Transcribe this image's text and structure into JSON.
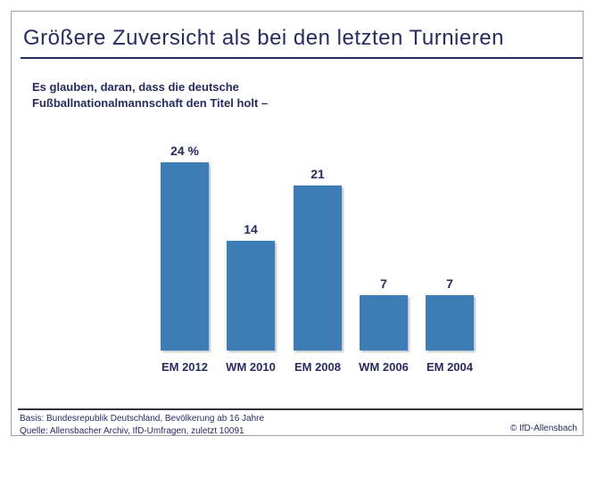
{
  "header": {
    "title": "Größere Zuversicht als bei den letzten Turnieren"
  },
  "subtitle": {
    "line1": "Es glauben, daran, dass die deutsche",
    "line2": "Fußballnationalmannschaft den Titel holt –"
  },
  "chart_data": {
    "type": "bar",
    "categories": [
      "EM 2012",
      "WM 2010",
      "EM 2008",
      "WM 2006",
      "EM 2004"
    ],
    "values": [
      24,
      14,
      21,
      7,
      7
    ],
    "value_labels": [
      "24 %",
      "14",
      "21",
      "7",
      "7"
    ],
    "title": "Größere Zuversicht als bei den letzten Turnieren",
    "xlabel": "",
    "ylabel": "",
    "unit": "percent",
    "ylim": [
      0,
      26
    ],
    "grid": false,
    "legend": null,
    "bar_color": "#3e7cb5",
    "label_color": "#272c5f"
  },
  "footer": {
    "basis": "Basis: Bundesrepublik Deutschland, Bevölkerung ab 16 Jahre",
    "quelle": "Quelle: Allensbacher Archiv, IfD-Umfragen, zuletzt 10091",
    "copyright": "© IfD-Allensbach"
  },
  "colors": {
    "navy": "#272c5f",
    "bar": "#3e7cb5",
    "frame_border": "#a0a0a0",
    "footer_rule": "#33333d"
  }
}
